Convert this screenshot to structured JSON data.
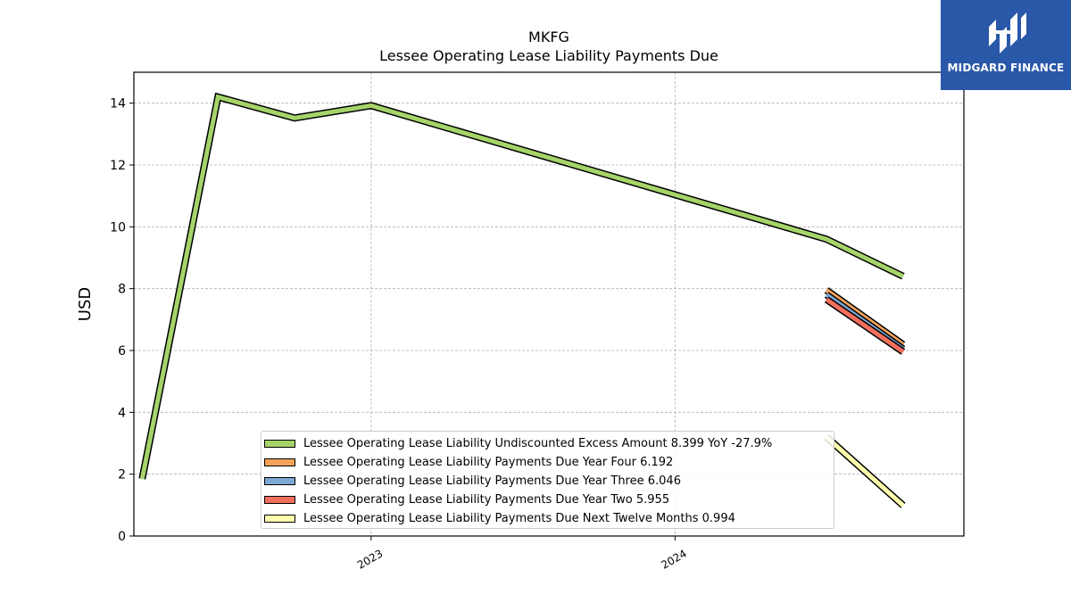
{
  "chart_data": {
    "type": "line",
    "title": "MKFG",
    "subtitle": "Lessee Operating Lease Liability Payments Due",
    "xlabel": "",
    "ylabel": "USD",
    "ylim": [
      0,
      15
    ],
    "xlim": [
      "2022-03-22",
      "2024-12-13"
    ],
    "yticks": [
      0,
      2,
      4,
      6,
      8,
      10,
      12,
      14
    ],
    "xticks": [
      {
        "date": "2023-01-01",
        "label": "2023"
      },
      {
        "date": "2024-01-01",
        "label": "2024"
      }
    ],
    "grid": true,
    "legend_position": "bottom-center",
    "series": [
      {
        "name": "Lessee Operating Lease Liability Undiscounted Excess Amount",
        "legend_label": "Lessee Operating Lease Liability Undiscounted Excess Amount  8.399 YoY -27.9%",
        "color": "#a6d46a",
        "points": [
          {
            "x": "2022-04-01",
            "y": 1.85
          },
          {
            "x": "2022-07-01",
            "y": 14.2
          },
          {
            "x": "2022-10-01",
            "y": 13.52
          },
          {
            "x": "2023-01-01",
            "y": 13.92
          },
          {
            "x": "2024-07-01",
            "y": 9.6
          },
          {
            "x": "2024-10-01",
            "y": 8.4
          }
        ]
      },
      {
        "name": "Lessee Operating Lease Liability Payments Due Year Four",
        "legend_label": "Lessee Operating Lease Liability Payments Due Year Four  6.192",
        "color": "#f6a35a",
        "points": [
          {
            "x": "2024-07-01",
            "y": 7.95
          },
          {
            "x": "2024-10-01",
            "y": 6.19
          }
        ]
      },
      {
        "name": "Lessee Operating Lease Liability Payments Due Year Three",
        "legend_label": "Lessee Operating Lease Liability Payments Due Year Three  6.046",
        "color": "#7fa9d4",
        "points": [
          {
            "x": "2024-07-01",
            "y": 7.8
          },
          {
            "x": "2024-10-01",
            "y": 6.05
          }
        ]
      },
      {
        "name": "Lessee Operating Lease Liability Payments Due Year Two",
        "legend_label": "Lessee Operating Lease Liability Payments Due Year Two  5.955",
        "color": "#f26f5e",
        "points": [
          {
            "x": "2024-07-01",
            "y": 7.65
          },
          {
            "x": "2024-10-01",
            "y": 5.96
          }
        ]
      },
      {
        "name": "Lessee Operating Lease Liability Payments Due Next Twelve Months",
        "legend_label": "Lessee Operating Lease Liability Payments Due Next Twelve Months  0.994",
        "color": "#ffffb0",
        "points": [
          {
            "x": "2024-07-01",
            "y": 3.2
          },
          {
            "x": "2024-10-01",
            "y": 0.99
          }
        ]
      }
    ]
  },
  "logo": {
    "text": "MIDGARD FINANCE",
    "background": "#2a58a8"
  }
}
